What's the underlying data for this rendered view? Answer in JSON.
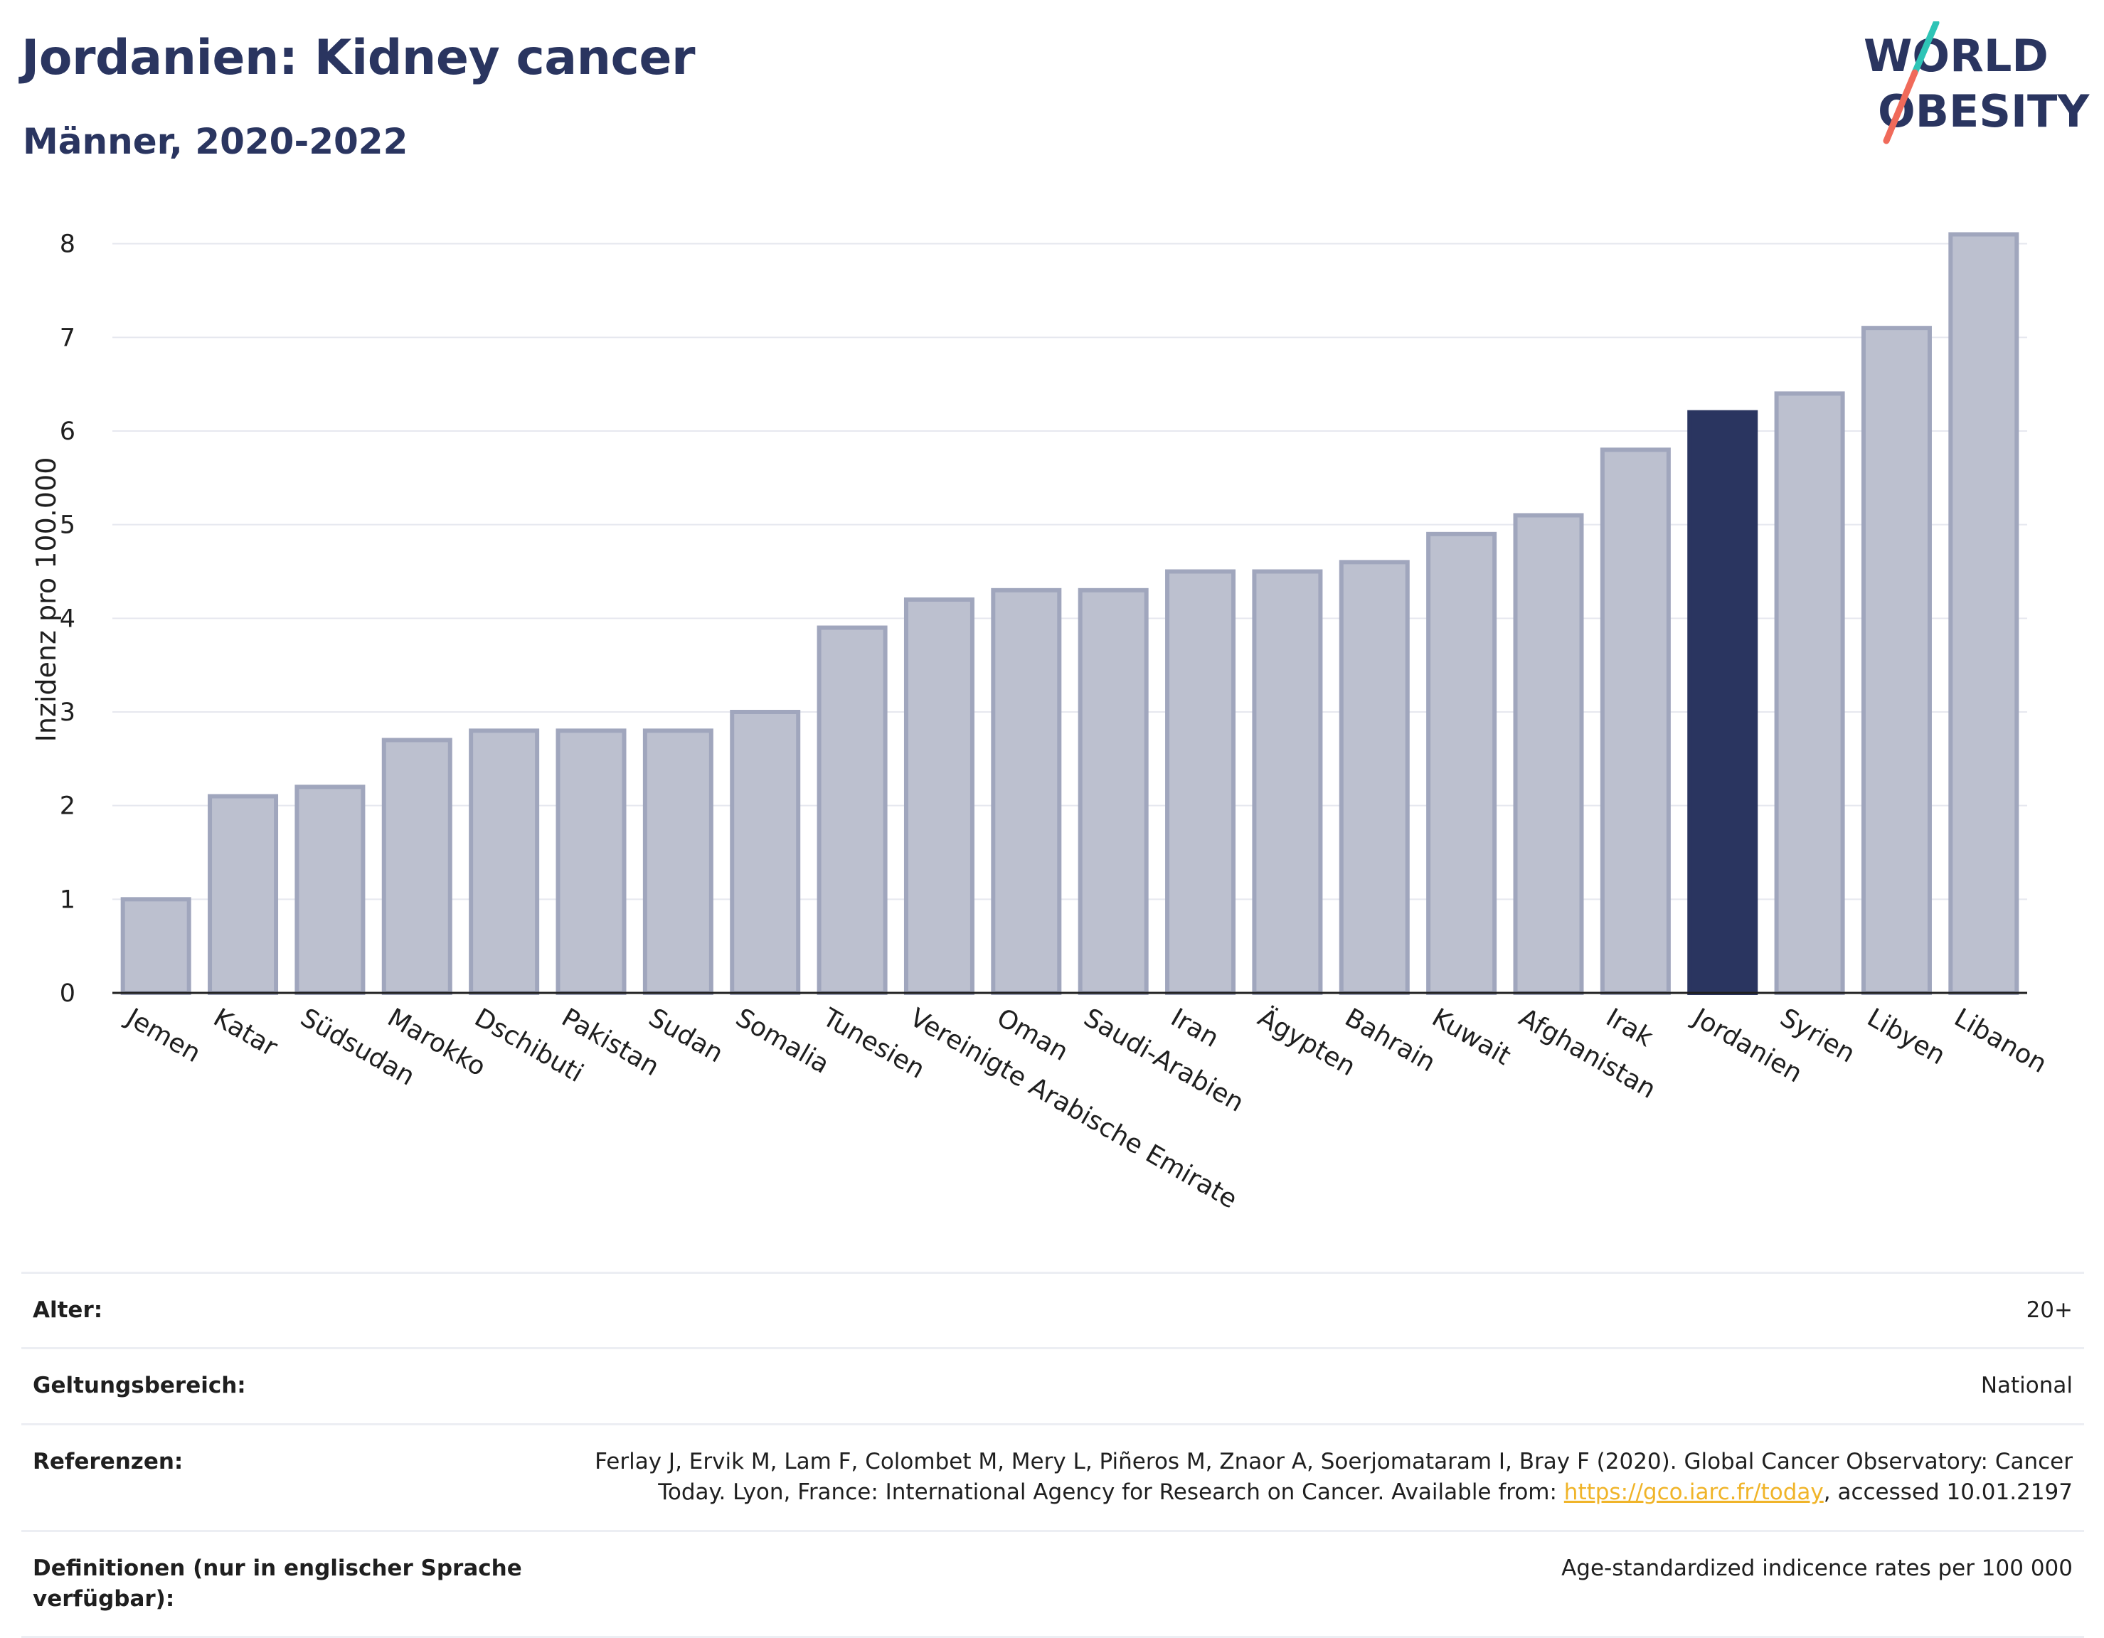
{
  "header": {
    "title": "Jordanien: Kidney cancer",
    "subtitle": "Männer, 2020-2022"
  },
  "logo": {
    "line1": "WORLD",
    "line2": "OBESITY",
    "slash_colors": [
      "#2ec4b6",
      "#f06a5a"
    ],
    "text_color": "#2a3560"
  },
  "colors": {
    "bar_default": "#bcc0cf",
    "bar_default_stroke": "#a0a6bd",
    "bar_highlight": "#2a3560",
    "grid": "#e6e8ef",
    "axis": "#1f1f1f"
  },
  "chart_data": {
    "type": "bar",
    "ylabel": "Inzidenz pro 100.000",
    "ylim": [
      0,
      8.4
    ],
    "yticks": [
      0,
      1,
      2,
      3,
      4,
      5,
      6,
      7,
      8
    ],
    "categories": [
      "Jemen",
      "Katar",
      "Südsudan",
      "Marokko",
      "Dschibuti",
      "Pakistan",
      "Sudan",
      "Somalia",
      "Tunesien",
      "Vereinigte Arabische Emirate",
      "Oman",
      "Saudi-Arabien",
      "Iran",
      "Ägypten",
      "Bahrain",
      "Kuwait",
      "Afghanistan",
      "Irak",
      "Jordanien",
      "Syrien",
      "Libyen",
      "Libanon"
    ],
    "values": [
      1.0,
      2.1,
      2.2,
      2.7,
      2.8,
      2.8,
      2.8,
      3.0,
      3.9,
      4.2,
      4.3,
      4.3,
      4.5,
      4.5,
      4.6,
      4.9,
      5.1,
      5.8,
      6.2,
      6.4,
      7.1,
      8.1
    ],
    "highlight": "Jordanien",
    "grid": true
  },
  "info": {
    "age_label": "Alter:",
    "age_value": "20+",
    "scope_label": "Geltungsbereich:",
    "scope_value": "National",
    "ref_label": "Referenzen:",
    "ref_line1": "Ferlay J, Ervik M, Lam F, Colombet M, Mery L, Piñeros M, Znaor A, Soerjomataram I, Bray F (2020). Global Cancer Observatory: Cancer",
    "ref_line2_pre": "Today. Lyon, France: International Agency for Research on Cancer. Available from: ",
    "ref_link": "https://gco.iarc.fr/today",
    "ref_line2_post": ", accessed 10.01.2197",
    "def_label": "Definitionen (nur in englischer Sprache verfügbar):",
    "def_value": "Age-standardized indicence rates per 100 000"
  }
}
